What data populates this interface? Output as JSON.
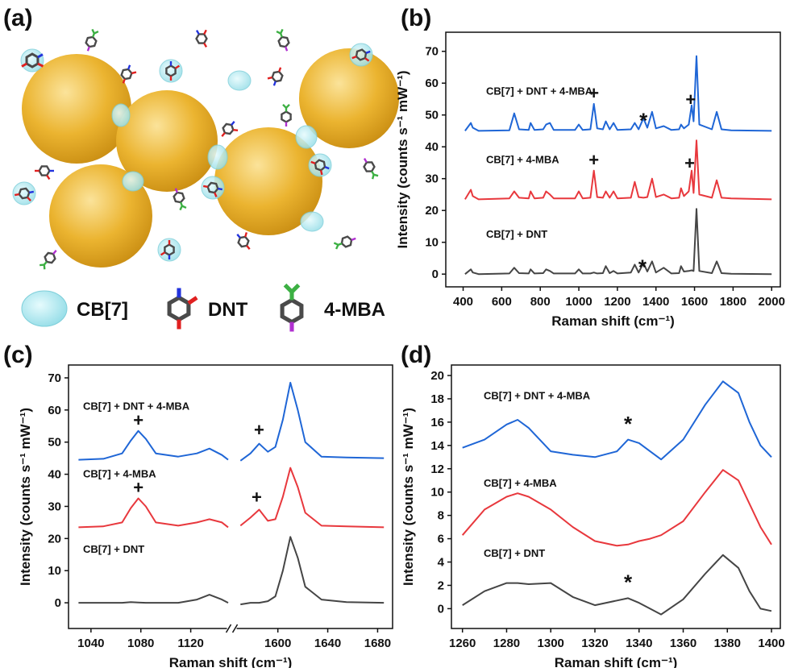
{
  "panel_labels": [
    "(a)",
    "(b)",
    "(c)",
    "(d)"
  ],
  "panel_a": {
    "legend": [
      "CB[7]",
      "DNT",
      "4-MBA"
    ]
  },
  "chart_data": [
    {
      "type": "line",
      "xlabel": "Raman shift (cm⁻¹)",
      "ylabel": "Intensity (counts s⁻¹ mW⁻¹)",
      "xlim": [
        310,
        2045
      ],
      "ylim": [
        -4,
        76
      ],
      "xticks": [
        400,
        600,
        800,
        1000,
        1200,
        1400,
        1600,
        1800,
        2000
      ],
      "yticks": [
        0,
        10,
        20,
        30,
        40,
        50,
        60,
        70
      ],
      "x": [
        410,
        440,
        450,
        480,
        640,
        665,
        690,
        740,
        750,
        770,
        815,
        830,
        850,
        870,
        980,
        1000,
        1020,
        1060,
        1078,
        1095,
        1125,
        1140,
        1160,
        1180,
        1200,
        1270,
        1290,
        1310,
        1335,
        1355,
        1380,
        1400,
        1440,
        1480,
        1520,
        1530,
        1545,
        1570,
        1585,
        1595,
        1610,
        1625,
        1690,
        1715,
        1740,
        1790,
        2000
      ],
      "series": [
        {
          "name": "CB[7] + DNT + 4-MBA",
          "color": "#1f66d6",
          "values": [
            45,
            47.5,
            46,
            45,
            45.2,
            50.5,
            45.5,
            45.3,
            47.5,
            45.3,
            45.5,
            47,
            47.5,
            45.3,
            45.3,
            47,
            45.3,
            45.5,
            53.5,
            45.8,
            45.5,
            48,
            45.5,
            47.5,
            45.3,
            45.5,
            47.5,
            45.5,
            49,
            46,
            51,
            45.8,
            46.5,
            45.3,
            45.5,
            47,
            45.8,
            47,
            53,
            48,
            68.5,
            47,
            45.5,
            51,
            45.5,
            45.2,
            45
          ]
        },
        {
          "name": "CB[7] + 4-MBA",
          "color": "#e8383d",
          "values": [
            23.5,
            26.5,
            24.5,
            23.5,
            23.8,
            26,
            24,
            23.8,
            26,
            23.8,
            24,
            26,
            25,
            23.8,
            23.8,
            26,
            23.8,
            24,
            32.5,
            24.2,
            24,
            26,
            24,
            26,
            23.8,
            24,
            29,
            24.2,
            24,
            24.2,
            30,
            24.2,
            25,
            23.8,
            24,
            27,
            24.5,
            26,
            32.5,
            25.5,
            42,
            25,
            24,
            29.5,
            24,
            23.8,
            23.5
          ]
        },
        {
          "name": "CB[7] + DNT",
          "color": "#454545",
          "values": [
            0,
            1.5,
            0.5,
            0,
            0.2,
            2,
            0.3,
            0.2,
            1.5,
            0.2,
            0.3,
            1.5,
            1,
            0.2,
            0.2,
            1.5,
            0.2,
            0.2,
            0.5,
            0.2,
            0.3,
            2.5,
            0.3,
            1,
            0.2,
            0.5,
            3,
            0.5,
            3.5,
            0.8,
            4,
            0.5,
            2,
            0.2,
            0.3,
            2.5,
            0.8,
            1,
            1.2,
            1,
            20.5,
            1,
            0.3,
            4,
            0.3,
            0.1,
            0
          ]
        }
      ],
      "annotations": [
        {
          "text": "+",
          "x": 1078,
          "y": 57
        },
        {
          "text": "+",
          "x": 1580,
          "y": 55
        },
        {
          "text": "*",
          "x": 1335,
          "y": 48
        },
        {
          "text": "+",
          "x": 1078,
          "y": 36
        },
        {
          "text": "+",
          "x": 1575,
          "y": 35
        },
        {
          "text": "*",
          "x": 1330,
          "y": 2
        }
      ]
    },
    {
      "type": "line",
      "xlabel": "Raman shift (cm⁻¹)",
      "ylabel": "Intensity (counts s⁻¹ mW⁻¹)",
      "segments": [
        {
          "xlim": [
            1022,
            1151
          ],
          "xticks": [
            1040,
            1080,
            1120
          ]
        },
        {
          "xlim": [
            1565,
            1692
          ],
          "xticks": [
            1600,
            1640,
            1680
          ]
        }
      ],
      "ylim": [
        -8,
        74
      ],
      "yticks": [
        0,
        10,
        20,
        30,
        40,
        50,
        60,
        70
      ],
      "x": [
        1030,
        1050,
        1065,
        1072,
        1078,
        1084,
        1092,
        1110,
        1125,
        1135,
        1145,
        1150,
        1570,
        1578,
        1585,
        1592,
        1598,
        1604,
        1610,
        1616,
        1622,
        1635,
        1655,
        1685
      ],
      "series": [
        {
          "name": "CB[7] + DNT + 4-MBA",
          "color": "#1f66d6",
          "values": [
            44.5,
            44.8,
            46.5,
            50.5,
            53.5,
            51,
            46.5,
            45.5,
            46.5,
            48,
            46,
            44.5,
            44.2,
            46.5,
            49.5,
            47,
            48.5,
            57,
            68.5,
            60,
            50,
            45.5,
            45.2,
            45
          ]
        },
        {
          "name": "CB[7] + 4-MBA",
          "color": "#e8383d",
          "values": [
            23.5,
            23.8,
            25,
            29.5,
            32.5,
            30,
            25,
            24,
            25,
            26,
            25,
            23.5,
            24,
            26.5,
            29,
            25.5,
            26,
            33,
            42,
            36,
            28,
            24,
            23.8,
            23.5
          ]
        },
        {
          "name": "CB[7] + DNT",
          "color": "#454545",
          "values": [
            0,
            0,
            0,
            0.2,
            0.1,
            0,
            0,
            0,
            1,
            2.5,
            1,
            0,
            -0.5,
            0,
            0,
            0.5,
            2,
            10,
            20.5,
            14,
            5,
            1,
            0.2,
            0
          ]
        }
      ],
      "annotations": [
        {
          "text": "+",
          "x": 1078,
          "y": 57
        },
        {
          "text": "+",
          "x": 1585,
          "y": 54
        },
        {
          "text": "+",
          "x": 1078,
          "y": 36
        },
        {
          "text": "+",
          "x": 1583,
          "y": 33
        }
      ]
    },
    {
      "type": "line",
      "xlabel": "Raman shift (cm⁻¹)",
      "ylabel": "Intensity (counts s⁻¹ mW⁻¹)",
      "xlim": [
        1255,
        1404
      ],
      "ylim": [
        -1.7,
        20.9
      ],
      "xticks": [
        1260,
        1280,
        1300,
        1320,
        1340,
        1360,
        1380,
        1400
      ],
      "yticks": [
        0,
        2,
        4,
        6,
        8,
        10,
        12,
        14,
        16,
        18,
        20
      ],
      "x": [
        1260,
        1270,
        1280,
        1285,
        1290,
        1300,
        1310,
        1320,
        1330,
        1335,
        1340,
        1345,
        1350,
        1360,
        1370,
        1378,
        1385,
        1390,
        1395,
        1400
      ],
      "series": [
        {
          "name": "CB[7] + DNT + 4-MBA",
          "color": "#1f66d6",
          "values": [
            13.8,
            14.5,
            15.8,
            16.2,
            15.5,
            13.5,
            13.2,
            13,
            13.5,
            14.5,
            14.2,
            13.5,
            12.8,
            14.5,
            17.5,
            19.5,
            18.5,
            16,
            14,
            13
          ]
        },
        {
          "name": "CB[7] + 4-MBA",
          "color": "#e8383d",
          "values": [
            6.3,
            8.5,
            9.6,
            9.9,
            9.6,
            8.5,
            7,
            5.8,
            5.4,
            5.5,
            5.8,
            6,
            6.3,
            7.5,
            10,
            11.9,
            11,
            9,
            7,
            5.5
          ]
        },
        {
          "name": "CB[7] + DNT",
          "color": "#454545",
          "values": [
            0.3,
            1.5,
            2.2,
            2.2,
            2.1,
            2.2,
            1,
            0.3,
            0.7,
            0.9,
            0.5,
            0,
            -0.5,
            0.8,
            3,
            4.6,
            3.5,
            1.5,
            0,
            -0.2
          ]
        }
      ],
      "annotations": [
        {
          "text": "*",
          "x": 1335,
          "y": 15.8
        },
        {
          "text": "*",
          "x": 1335,
          "y": 2.2
        }
      ]
    }
  ]
}
